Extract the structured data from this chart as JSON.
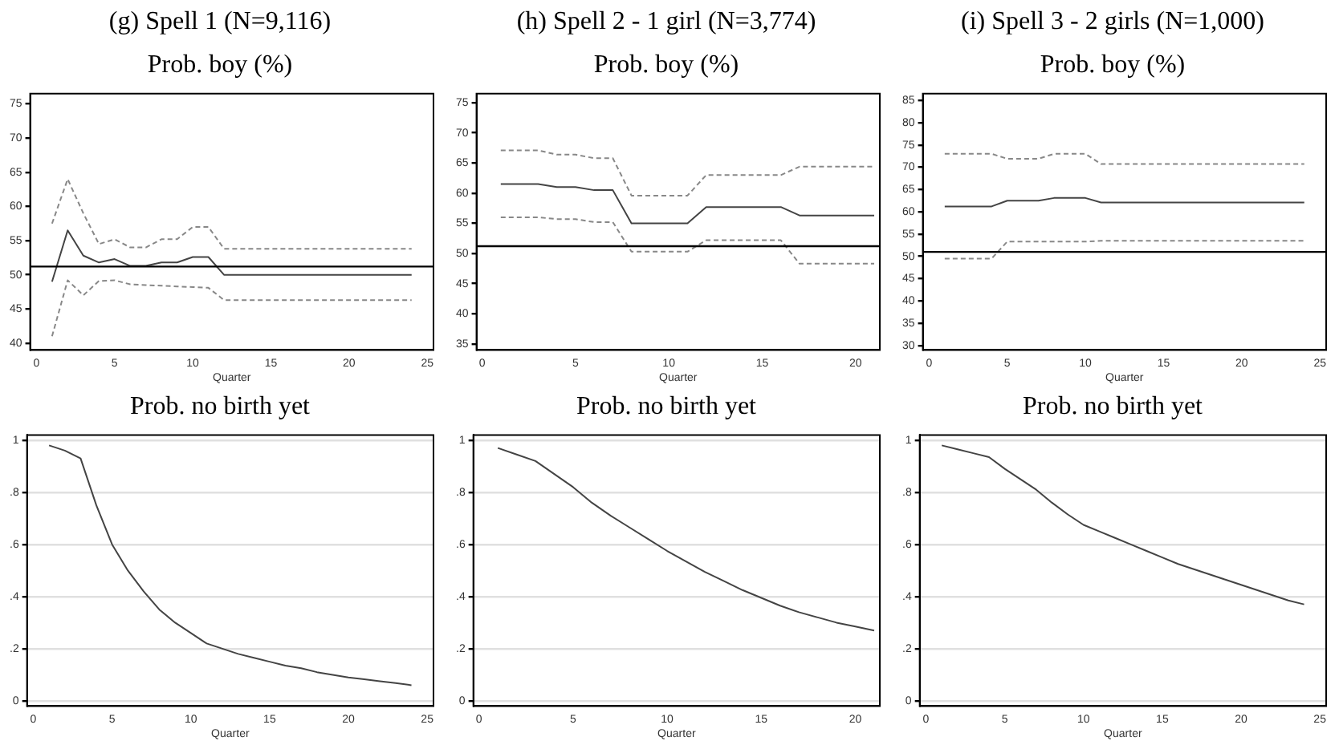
{
  "chart_data": [
    {
      "type": "line",
      "title": "(g) Spell 1 (N=9,116)",
      "subtitle": "Prob. boy (%)",
      "xlabel": "Quarter",
      "x": [
        1,
        2,
        3,
        4,
        5,
        6,
        7,
        8,
        9,
        10,
        11,
        12,
        13,
        14,
        15,
        16,
        17,
        18,
        19,
        20,
        21,
        22,
        23,
        24
      ],
      "xlim": [
        -0.4,
        25.4
      ],
      "xticks": [
        0,
        5,
        10,
        15,
        20,
        25
      ],
      "ylim": [
        39,
        76.5
      ],
      "yticks": [
        40,
        45,
        50,
        55,
        60,
        65,
        70,
        75
      ],
      "grid": false,
      "marker": "none",
      "series": [
        {
          "color": "#888888",
          "line_style": "dashed",
          "values": [
            57.5,
            64,
            59,
            54.5,
            55.2,
            54,
            54,
            55.2,
            55.2,
            57,
            57,
            53.8,
            53.8,
            53.8,
            53.8,
            53.8,
            53.8,
            53.8,
            53.8,
            53.8,
            53.8,
            53.8,
            53.8,
            53.8
          ]
        },
        {
          "color": "#444444",
          "line_style": "solid",
          "values": [
            49,
            56.5,
            52.8,
            51.8,
            52.3,
            51.3,
            51.3,
            51.8,
            51.8,
            52.6,
            52.6,
            50,
            50,
            50,
            50,
            50,
            50,
            50,
            50,
            50,
            50,
            50,
            50,
            50
          ]
        },
        {
          "color": "#888888",
          "line_style": "dashed",
          "values": [
            41,
            49.2,
            47,
            49.1,
            49.2,
            48.6,
            48.5,
            48.4,
            48.3,
            48.2,
            48.1,
            46.3,
            46.3,
            46.3,
            46.3,
            46.3,
            46.3,
            46.3,
            46.3,
            46.3,
            46.3,
            46.3,
            46.3,
            46.3
          ]
        }
      ],
      "ref_lines": [
        {
          "axis": "y",
          "value": 51.2,
          "color": "#000000"
        }
      ]
    },
    {
      "type": "line",
      "title": "(h) Spell 2 - 1 girl (N=3,774)",
      "subtitle": "Prob. boy (%)",
      "xlabel": "Quarter",
      "x": [
        1,
        2,
        3,
        4,
        5,
        6,
        7,
        8,
        9,
        10,
        11,
        12,
        13,
        14,
        15,
        16,
        17,
        18,
        19,
        20,
        21
      ],
      "xlim": [
        -0.3,
        21.3
      ],
      "xticks": [
        0,
        5,
        10,
        15,
        20
      ],
      "ylim": [
        34,
        76.5
      ],
      "yticks": [
        35,
        40,
        45,
        50,
        55,
        60,
        65,
        70,
        75
      ],
      "grid": false,
      "marker": "none",
      "series": [
        {
          "color": "#888888",
          "line_style": "dashed",
          "values": [
            67.1,
            67.1,
            67.1,
            66.4,
            66.4,
            65.8,
            65.8,
            59.6,
            59.6,
            59.6,
            59.6,
            63,
            63,
            63,
            63,
            63,
            64.4,
            64.4,
            64.4,
            64.4,
            64.4
          ]
        },
        {
          "color": "#444444",
          "line_style": "solid",
          "values": [
            61.5,
            61.5,
            61.5,
            61,
            61,
            60.5,
            60.5,
            55,
            55,
            55,
            55,
            57.7,
            57.7,
            57.7,
            57.7,
            57.7,
            56.3,
            56.3,
            56.3,
            56.3,
            56.3
          ]
        },
        {
          "color": "#888888",
          "line_style": "dashed",
          "values": [
            56,
            56,
            56,
            55.7,
            55.7,
            55.2,
            55.2,
            50.3,
            50.3,
            50.3,
            50.3,
            52.2,
            52.2,
            52.2,
            52.2,
            52.2,
            48.3,
            48.3,
            48.3,
            48.3,
            48.3
          ]
        }
      ],
      "ref_lines": [
        {
          "axis": "y",
          "value": 51.2,
          "color": "#000000"
        }
      ]
    },
    {
      "type": "line",
      "title": "(i) Spell 3 - 2 girls (N=1,000)",
      "subtitle": "Prob. boy (%)",
      "xlabel": "Quarter",
      "x": [
        1,
        2,
        3,
        4,
        5,
        6,
        7,
        8,
        9,
        10,
        11,
        12,
        13,
        14,
        15,
        16,
        17,
        18,
        19,
        20,
        21,
        22,
        23,
        24
      ],
      "xlim": [
        -0.4,
        25.4
      ],
      "xticks": [
        0,
        5,
        10,
        15,
        20,
        25
      ],
      "ylim": [
        29,
        86.5
      ],
      "yticks": [
        30,
        35,
        40,
        45,
        50,
        55,
        60,
        65,
        70,
        75,
        80,
        85
      ],
      "grid": false,
      "marker": "none",
      "series": [
        {
          "color": "#888888",
          "line_style": "dashed",
          "values": [
            73,
            73,
            73,
            73,
            71.9,
            71.9,
            71.9,
            73,
            73,
            73,
            70.7,
            70.7,
            70.7,
            70.7,
            70.7,
            70.7,
            70.7,
            70.7,
            70.7,
            70.7,
            70.7,
            70.7,
            70.7,
            70.7
          ]
        },
        {
          "color": "#444444",
          "line_style": "solid",
          "values": [
            61.2,
            61.2,
            61.2,
            61.2,
            62.5,
            62.5,
            62.5,
            63.1,
            63.1,
            63.1,
            62.1,
            62.1,
            62.1,
            62.1,
            62.1,
            62.1,
            62.1,
            62.1,
            62.1,
            62.1,
            62.1,
            62.1,
            62.1,
            62.1
          ]
        },
        {
          "color": "#888888",
          "line_style": "dashed",
          "values": [
            49.5,
            49.5,
            49.5,
            49.5,
            53.3,
            53.3,
            53.3,
            53.3,
            53.3,
            53.3,
            53.5,
            53.5,
            53.5,
            53.5,
            53.5,
            53.5,
            53.5,
            53.5,
            53.5,
            53.5,
            53.5,
            53.5,
            53.5,
            53.5
          ]
        }
      ],
      "ref_lines": [
        {
          "axis": "y",
          "value": 51,
          "color": "#000000"
        }
      ]
    },
    {
      "type": "line",
      "title": "Prob. no birth yet",
      "xlabel": "Quarter",
      "x": [
        1,
        2,
        3,
        4,
        5,
        6,
        7,
        8,
        9,
        10,
        11,
        12,
        13,
        14,
        15,
        16,
        17,
        18,
        19,
        20,
        21,
        22,
        23,
        24
      ],
      "xlim": [
        -0.4,
        25.4
      ],
      "xticks": [
        0,
        5,
        10,
        15,
        20,
        25
      ],
      "ylim": [
        -0.02,
        1.02
      ],
      "yticks": [
        {
          "value": 0,
          "label": "0"
        },
        {
          "value": 0.2,
          "label": ".2"
        },
        {
          "value": 0.4,
          "label": ".4"
        },
        {
          "value": 0.6,
          "label": ".6"
        },
        {
          "value": 0.8,
          "label": ".8"
        },
        {
          "value": 1,
          "label": "1"
        }
      ],
      "grid": "y",
      "marker": "none",
      "series": [
        {
          "color": "#444444",
          "line_style": "solid",
          "values": [
            0.98,
            0.96,
            0.93,
            0.75,
            0.6,
            0.5,
            0.42,
            0.35,
            0.3,
            0.26,
            0.22,
            0.2,
            0.18,
            0.165,
            0.15,
            0.135,
            0.125,
            0.11,
            0.1,
            0.09,
            0.083,
            0.075,
            0.068,
            0.06
          ]
        }
      ]
    },
    {
      "type": "line",
      "title": "Prob. no birth yet",
      "xlabel": "Quarter",
      "x": [
        1,
        2,
        3,
        4,
        5,
        6,
        7,
        8,
        9,
        10,
        11,
        12,
        13,
        14,
        15,
        16,
        17,
        18,
        19,
        20,
        21
      ],
      "xlim": [
        -0.3,
        21.3
      ],
      "xticks": [
        0,
        5,
        10,
        15,
        20
      ],
      "ylim": [
        -0.02,
        1.02
      ],
      "yticks": [
        {
          "value": 0,
          "label": "0"
        },
        {
          "value": 0.2,
          "label": ".2"
        },
        {
          "value": 0.4,
          "label": ".4"
        },
        {
          "value": 0.6,
          "label": ".6"
        },
        {
          "value": 0.8,
          "label": ".8"
        },
        {
          "value": 1,
          "label": "1"
        }
      ],
      "grid": "y",
      "marker": "none",
      "series": [
        {
          "color": "#444444",
          "line_style": "solid",
          "values": [
            0.97,
            0.945,
            0.92,
            0.87,
            0.82,
            0.76,
            0.71,
            0.665,
            0.62,
            0.575,
            0.535,
            0.495,
            0.46,
            0.425,
            0.395,
            0.365,
            0.34,
            0.32,
            0.3,
            0.285,
            0.27
          ]
        }
      ]
    },
    {
      "type": "line",
      "title": "Prob. no birth yet",
      "xlabel": "Quarter",
      "x": [
        1,
        2,
        3,
        4,
        5,
        6,
        7,
        8,
        9,
        10,
        11,
        12,
        13,
        14,
        15,
        16,
        17,
        18,
        19,
        20,
        21,
        22,
        23,
        24
      ],
      "xlim": [
        -0.4,
        25.4
      ],
      "xticks": [
        0,
        5,
        10,
        15,
        20,
        25
      ],
      "ylim": [
        -0.02,
        1.02
      ],
      "yticks": [
        {
          "value": 0,
          "label": "0"
        },
        {
          "value": 0.2,
          "label": ".2"
        },
        {
          "value": 0.4,
          "label": ".4"
        },
        {
          "value": 0.6,
          "label": ".6"
        },
        {
          "value": 0.8,
          "label": ".8"
        },
        {
          "value": 1,
          "label": "1"
        }
      ],
      "grid": "y",
      "marker": "none",
      "series": [
        {
          "color": "#444444",
          "line_style": "solid",
          "values": [
            0.98,
            0.965,
            0.95,
            0.935,
            0.89,
            0.85,
            0.81,
            0.76,
            0.715,
            0.675,
            0.65,
            0.625,
            0.6,
            0.575,
            0.55,
            0.525,
            0.505,
            0.485,
            0.465,
            0.445,
            0.425,
            0.405,
            0.385,
            0.37
          ]
        }
      ]
    }
  ]
}
